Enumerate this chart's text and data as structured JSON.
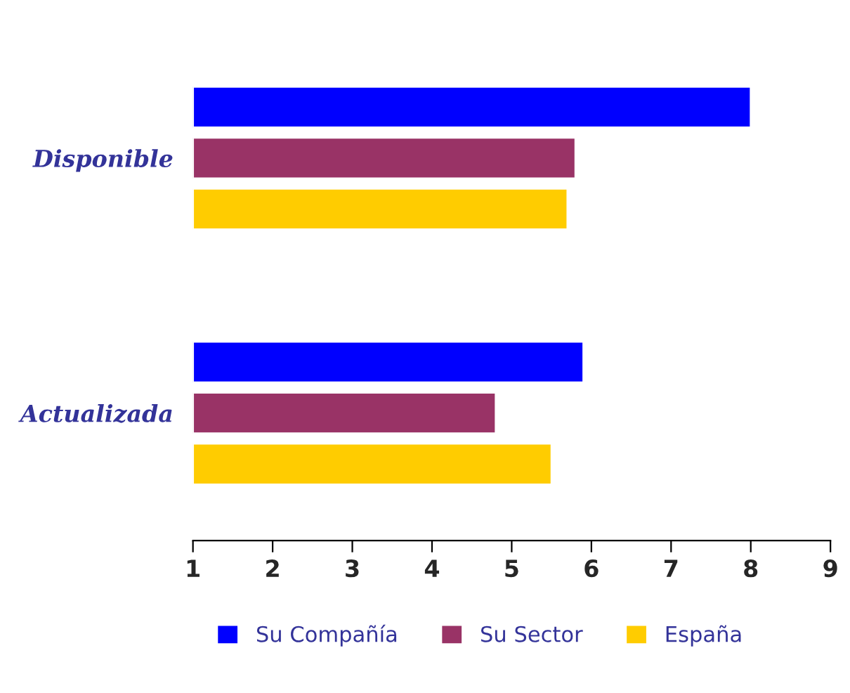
{
  "chart_data": {
    "type": "bar",
    "orientation": "horizontal",
    "categories": [
      "Disponible",
      "Actualizada"
    ],
    "series": [
      {
        "name": "Su Compañía",
        "color": "#0000ff",
        "values": [
          8.0,
          5.9
        ]
      },
      {
        "name": "Su Sector",
        "color": "#993366",
        "values": [
          5.8,
          4.8
        ]
      },
      {
        "name": "España",
        "color": "#ffcc00",
        "values": [
          5.7,
          5.5
        ]
      }
    ],
    "xlim": [
      1,
      9
    ],
    "xticks": [
      1,
      2,
      3,
      4,
      5,
      6,
      7,
      8,
      9
    ],
    "grid": false,
    "legend": "bottom"
  }
}
